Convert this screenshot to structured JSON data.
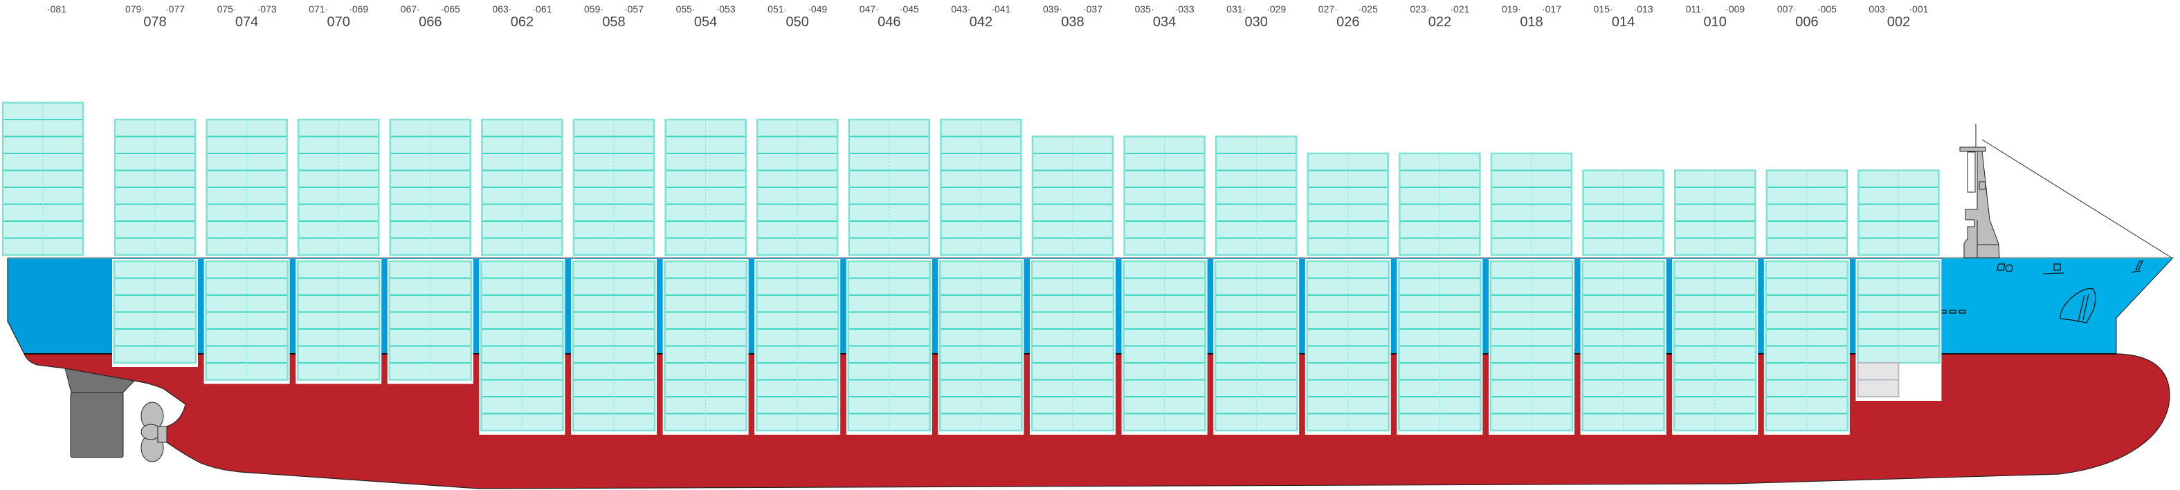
{
  "colors": {
    "hull_red": "#bb2229",
    "hull_blue_aft": "#009ddb",
    "hull_blue_bow": "#00aee8",
    "container_fill": "#c8f3ee",
    "container_line": "#3fd6c2",
    "empty_slot_fill": "#e5e5e8",
    "superstructure_gray": "#bdbdbd",
    "rudder_gray": "#737373"
  },
  "bay_081": {
    "fwd": "·081",
    "deck_tiers": 9
  },
  "bays": [
    {
      "bay": "078",
      "aft": "079·",
      "fwd": "·077",
      "deck_tiers": 8,
      "hold_tiers": 6
    },
    {
      "bay": "074",
      "aft": "075·",
      "fwd": "·073",
      "deck_tiers": 8,
      "hold_tiers": 7
    },
    {
      "bay": "070",
      "aft": "071·",
      "fwd": "·069",
      "deck_tiers": 8,
      "hold_tiers": 7
    },
    {
      "bay": "066",
      "aft": "067·",
      "fwd": "·065",
      "deck_tiers": 8,
      "hold_tiers": 7
    },
    {
      "bay": "062",
      "aft": "063·",
      "fwd": "·061",
      "deck_tiers": 8,
      "hold_tiers": 10
    },
    {
      "bay": "058",
      "aft": "059·",
      "fwd": "·057",
      "deck_tiers": 8,
      "hold_tiers": 10
    },
    {
      "bay": "054",
      "aft": "055·",
      "fwd": "·053",
      "deck_tiers": 8,
      "hold_tiers": 10
    },
    {
      "bay": "050",
      "aft": "051·",
      "fwd": "·049",
      "deck_tiers": 8,
      "hold_tiers": 10
    },
    {
      "bay": "046",
      "aft": "047·",
      "fwd": "·045",
      "deck_tiers": 8,
      "hold_tiers": 10
    },
    {
      "bay": "042",
      "aft": "043·",
      "fwd": "·041",
      "deck_tiers": 8,
      "hold_tiers": 10
    },
    {
      "bay": "038",
      "aft": "039·",
      "fwd": "·037",
      "deck_tiers": 7,
      "hold_tiers": 10
    },
    {
      "bay": "034",
      "aft": "035·",
      "fwd": "·033",
      "deck_tiers": 7,
      "hold_tiers": 10
    },
    {
      "bay": "030",
      "aft": "031·",
      "fwd": "·029",
      "deck_tiers": 7,
      "hold_tiers": 10
    },
    {
      "bay": "026",
      "aft": "027·",
      "fwd": "·025",
      "deck_tiers": 6,
      "hold_tiers": 10
    },
    {
      "bay": "022",
      "aft": "023·",
      "fwd": "·021",
      "deck_tiers": 6,
      "hold_tiers": 10
    },
    {
      "bay": "018",
      "aft": "019·",
      "fwd": "·017",
      "deck_tiers": 6,
      "hold_tiers": 10
    },
    {
      "bay": "014",
      "aft": "015·",
      "fwd": "·013",
      "deck_tiers": 5,
      "hold_tiers": 10
    },
    {
      "bay": "010",
      "aft": "011·",
      "fwd": "·009",
      "deck_tiers": 5,
      "hold_tiers": 10
    },
    {
      "bay": "006",
      "aft": "007·",
      "fwd": "·005",
      "deck_tiers": 5,
      "hold_tiers": 10
    },
    {
      "bay": "002",
      "aft": "003·",
      "fwd": "·001",
      "deck_tiers": 5,
      "hold_tiers": 6,
      "empty_half_tiers": 2
    }
  ]
}
